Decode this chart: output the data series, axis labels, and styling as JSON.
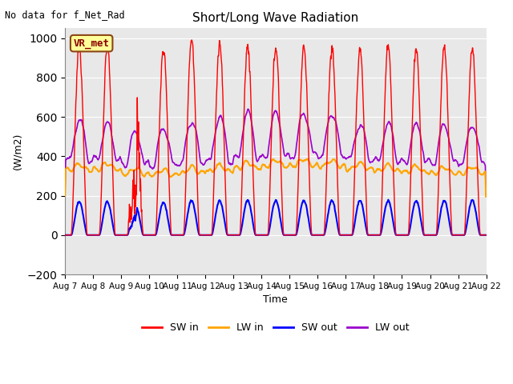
{
  "title": "Short/Long Wave Radiation",
  "xlabel": "Time",
  "ylabel": "(W/m2)",
  "top_left_text": "No data for f_Net_Rad",
  "legend_label_text": "VR_met",
  "ylim": [
    -200,
    1050
  ],
  "yticks": [
    -200,
    0,
    200,
    400,
    600,
    800,
    1000
  ],
  "x_tick_labels": [
    "Aug 7",
    "Aug 8",
    "Aug 9",
    "Aug 10",
    "Aug 11",
    "Aug 12",
    "Aug 13",
    "Aug 14",
    "Aug 15",
    "Aug 16",
    "Aug 17",
    "Aug 18",
    "Aug 19",
    "Aug 20",
    "Aug 21",
    "Aug 22"
  ],
  "colors": {
    "SW_in": "#ff0000",
    "LW_in": "#ffa500",
    "SW_out": "#0000ff",
    "LW_out": "#9900cc"
  },
  "bg_color": "#e8e8e8",
  "legend_entries": [
    "SW in",
    "LW in",
    "SW out",
    "LW out"
  ],
  "n_days": 15,
  "peak_sw_in": [
    960,
    960,
    820,
    950,
    1000,
    970,
    960,
    960,
    960,
    950,
    950,
    960,
    950,
    960,
    950
  ],
  "peak_lw_out": [
    580,
    560,
    520,
    545,
    580,
    600,
    620,
    620,
    620,
    620,
    560,
    560,
    560,
    560,
    560
  ],
  "base_lw_in": [
    330,
    335,
    310,
    305,
    315,
    325,
    340,
    350,
    355,
    350,
    335,
    325,
    320,
    315,
    315
  ],
  "peak_sw_out": [
    170,
    170,
    150,
    165,
    175,
    175,
    175,
    175,
    175,
    175,
    175,
    175,
    175,
    175,
    175
  ]
}
